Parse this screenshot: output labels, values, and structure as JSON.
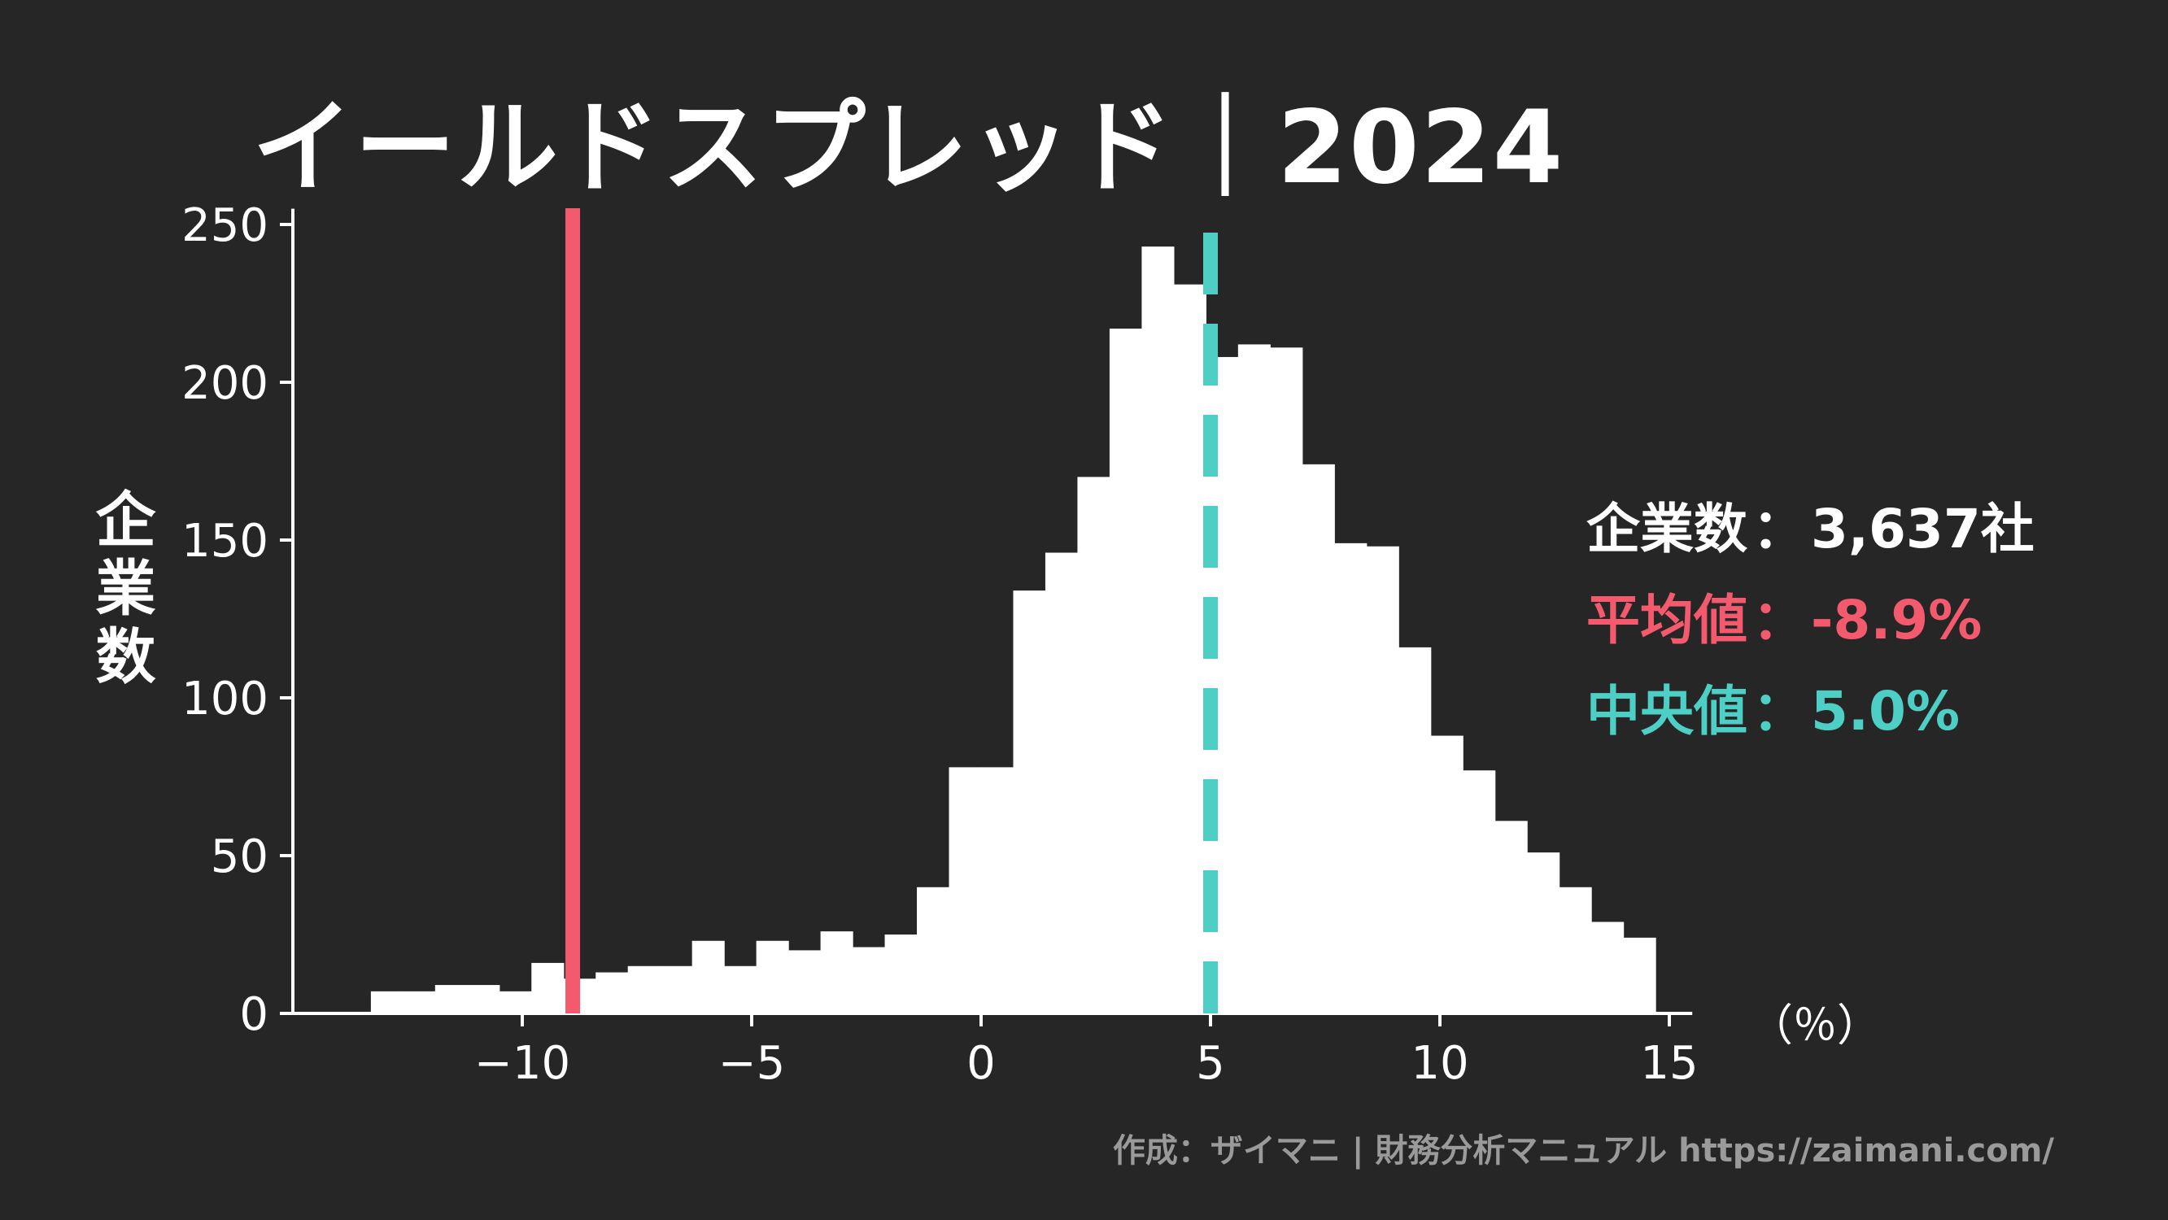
{
  "title": "イールドスプレッド｜2024",
  "ylabel": "企業数",
  "x_unit": "（％）",
  "stats": [
    {
      "label": "企業数",
      "sep": "：",
      "value": "3,637社",
      "color": "#ffffff"
    },
    {
      "label": "平均値",
      "sep": "：",
      "value": "-8.9%",
      "color": "#f45a6e"
    },
    {
      "label": "中央値",
      "sep": "：",
      "value": "5.0%",
      "color": "#4ecfc6"
    }
  ],
  "credit": "作成：ザイマニ | 財務分析マニュアル https://zaimani.com/",
  "colors": {
    "background": "#262626",
    "bars": "#ffffff",
    "axis": "#ffffff",
    "mean_line": "#f45a6e",
    "median_line": "#4ecfc6"
  },
  "chart_data": {
    "type": "bar",
    "bin_width": 0.7,
    "bin_start": -13.3,
    "values": [
      7,
      7,
      9,
      9,
      7,
      16,
      11,
      13,
      15,
      15,
      23,
      15,
      23,
      20,
      26,
      21,
      25,
      40,
      78,
      78,
      134,
      146,
      170,
      217,
      243,
      231,
      208,
      212,
      211,
      174,
      149,
      148,
      116,
      88,
      77,
      61,
      51,
      40,
      29,
      24
    ],
    "xlim": [
      -15,
      15.5
    ],
    "ylim": [
      0,
      255
    ],
    "xticks": [
      -10,
      -5,
      0,
      5,
      10,
      15
    ],
    "xtick_labels": [
      "−10",
      "−5",
      "0",
      "5",
      "10",
      "15"
    ],
    "yticks": [
      0,
      50,
      100,
      150,
      200,
      250
    ],
    "ytick_labels": [
      "0",
      "50",
      "100",
      "150",
      "200",
      "250"
    ],
    "mean": -8.9,
    "median": 5.0,
    "grid": false
  }
}
